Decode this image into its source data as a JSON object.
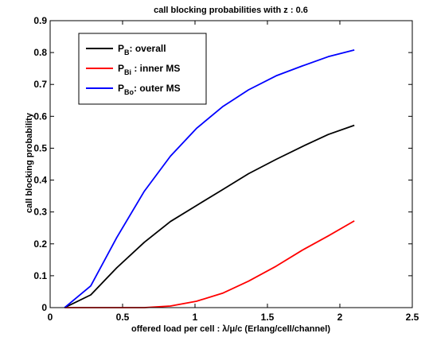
{
  "chart_data": {
    "type": "line",
    "title": "call blocking probabilities with z : 0.6",
    "xlabel": "offered load per cell : λ/μ/c (Erlang/cell/channel)",
    "ylabel": "call blocking probability",
    "xlim": [
      0,
      2.5
    ],
    "ylim": [
      0,
      0.9
    ],
    "xticks": [
      0,
      0.5,
      1,
      1.5,
      2,
      2.5
    ],
    "xtick_labels": [
      "0",
      "0.5",
      "1",
      "1.5",
      "2",
      "2.5"
    ],
    "yticks": [
      0,
      0.1,
      0.2,
      0.3,
      0.4,
      0.5,
      0.6,
      0.7,
      0.8,
      0.9
    ],
    "ytick_labels": [
      "0",
      "0.1",
      "0.2",
      "0.3",
      "0.4",
      "0.5",
      "0.6",
      "0.7",
      "0.8",
      "0.9"
    ],
    "grid": false,
    "legend_position": "top-left",
    "x": [
      0.1,
      0.28,
      0.46,
      0.65,
      0.83,
      1.01,
      1.19,
      1.37,
      1.56,
      1.74,
      1.92,
      2.1
    ],
    "series": [
      {
        "name": "P_B: overall",
        "legend_main": "P",
        "legend_sub": "B",
        "legend_rest": ": overall",
        "color": "#000000",
        "values": [
          0.0,
          0.04,
          0.125,
          0.205,
          0.27,
          0.32,
          0.37,
          0.42,
          0.465,
          0.505,
          0.543,
          0.572
        ]
      },
      {
        "name": "P_Bi : inner MS",
        "legend_main": "P",
        "legend_sub": "Bi",
        "legend_rest": " : inner MS",
        "color": "#ff0000",
        "values": [
          0.0,
          0.0,
          0.0,
          0.0,
          0.005,
          0.02,
          0.045,
          0.083,
          0.13,
          0.18,
          0.225,
          0.272
        ]
      },
      {
        "name": "P_Bo: outer MS",
        "legend_main": "P",
        "legend_sub": "Bo",
        "legend_rest": ": outer MS",
        "color": "#0000ff",
        "values": [
          0.0,
          0.068,
          0.22,
          0.365,
          0.475,
          0.562,
          0.63,
          0.683,
          0.727,
          0.758,
          0.787,
          0.808
        ]
      }
    ]
  }
}
